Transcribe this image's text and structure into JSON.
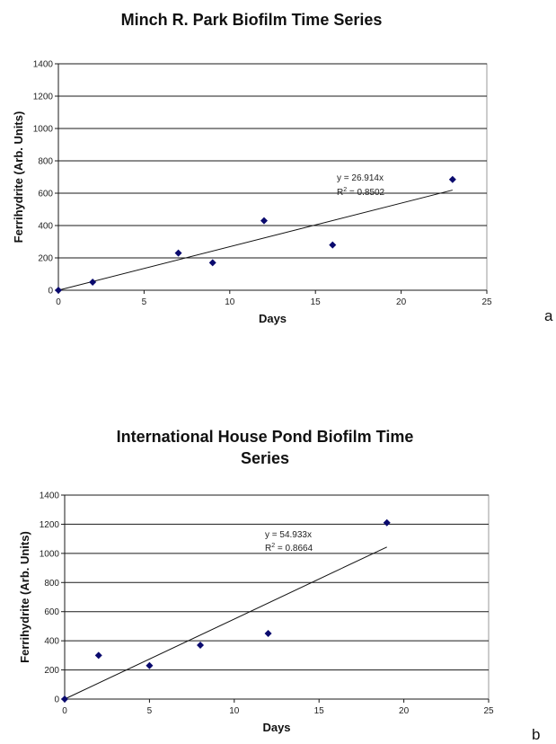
{
  "chart_data": [
    {
      "panel": "a",
      "type": "scatter",
      "title": "Minch R. Park Biofilm Time Series",
      "xlabel": "Days",
      "ylabel": "Ferrihydrite (Arb. Units)",
      "xlim": [
        0,
        25
      ],
      "ylim": [
        0,
        1400
      ],
      "xticks": [
        0,
        5,
        10,
        15,
        20,
        25
      ],
      "yticks": [
        0,
        200,
        400,
        600,
        800,
        1000,
        1200,
        1400
      ],
      "grid": true,
      "legend": "none",
      "marker_color": "#0a0a6e",
      "x": [
        0,
        2,
        7,
        9,
        12,
        16,
        23
      ],
      "y": [
        0,
        50,
        230,
        170,
        430,
        280,
        685
      ],
      "trendline": {
        "slope": 26.914,
        "x_end": 23,
        "equation": "y = 26.914x",
        "r2_prefix": "R",
        "r2_exp": "2",
        "r2_value": " = 0.8502"
      }
    },
    {
      "panel": "b",
      "type": "scatter",
      "title_line1": "International House Pond Biofilm Time",
      "title_line2": "Series",
      "xlabel": "Days",
      "ylabel": "Ferrihydrite (Arb. Units)",
      "xlim": [
        0,
        25
      ],
      "ylim": [
        0,
        1400
      ],
      "xticks": [
        0,
        5,
        10,
        15,
        20,
        25
      ],
      "yticks": [
        0,
        200,
        400,
        600,
        800,
        1000,
        1200,
        1400
      ],
      "grid": true,
      "legend": "none",
      "marker_color": "#0a0a6e",
      "x": [
        0,
        2,
        5,
        8,
        12,
        19
      ],
      "y": [
        0,
        300,
        230,
        370,
        450,
        1210
      ],
      "trendline": {
        "slope": 54.933,
        "x_end": 19,
        "equation": "y = 54.933x",
        "r2_prefix": "R",
        "r2_exp": "2",
        "r2_value": " = 0.8664"
      }
    }
  ],
  "panel_letters": {
    "a": "a",
    "b": "b"
  }
}
